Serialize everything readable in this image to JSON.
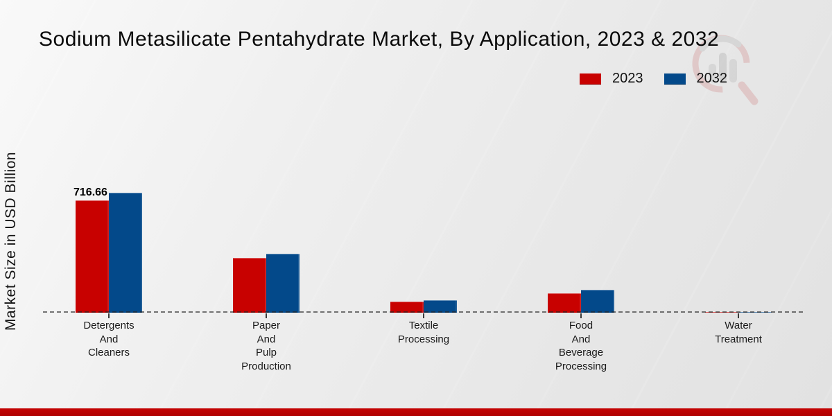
{
  "chart_data": {
    "type": "bar",
    "title": "Sodium Metasilicate Pentahydrate Market, By Application, 2023 & 2032",
    "xlabel": "",
    "ylabel": "Market Size in USD Billion",
    "ylim": [
      0,
      800
    ],
    "grid": "zero-baseline-dashed-only",
    "legend_position": "top-right",
    "categories": [
      {
        "label": "Detergents And Cleaners",
        "lines": [
          "Detergents",
          "And",
          "Cleaners"
        ]
      },
      {
        "label": "Paper And Pulp Production",
        "lines": [
          "Paper",
          "And",
          "Pulp",
          "Production"
        ]
      },
      {
        "label": "Textile Processing",
        "lines": [
          "Textile",
          "Processing"
        ]
      },
      {
        "label": "Food And Beverage Processing",
        "lines": [
          "Food",
          "And",
          "Beverage",
          "Processing"
        ]
      },
      {
        "label": "Water Treatment",
        "lines": [
          "Water",
          "Treatment"
        ]
      }
    ],
    "series": [
      {
        "name": "2023",
        "color": "#c80100",
        "values": [
          716.66,
          349,
          71,
          123,
          5
        ]
      },
      {
        "name": "2032",
        "color": "#03498a",
        "values": [
          765,
          377,
          81,
          145,
          6
        ]
      }
    ],
    "bar_value_labels": [
      {
        "series": "2023",
        "category_index": 0,
        "text": "716.66"
      }
    ]
  },
  "colors": {
    "series_2023": "#c80100",
    "series_2032": "#03498a",
    "bottom_band": "#b80000",
    "baseline": "#2b2b2b",
    "background": "#ebebeb",
    "watermark_red": "#d9aaaa",
    "watermark_gray": "#c6c6c6"
  },
  "icons": {
    "watermark": "magnifier-bar-chart-logo-icon"
  }
}
